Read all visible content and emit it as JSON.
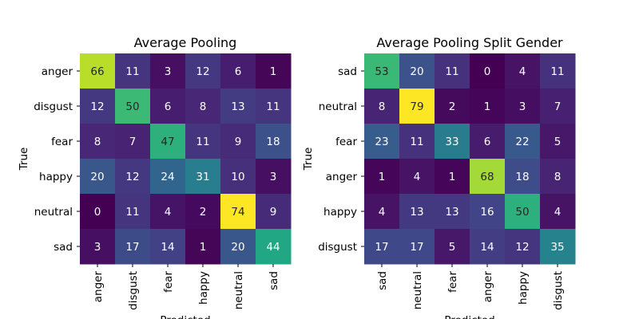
{
  "chart_data": [
    {
      "type": "heatmap",
      "title": "Average Pooling",
      "xlabel": "Predicted",
      "ylabel": "True",
      "row_labels": [
        "anger",
        "disgust",
        "fear",
        "happy",
        "neutral",
        "sad"
      ],
      "col_labels": [
        "anger",
        "disgust",
        "fear",
        "happy",
        "neutral",
        "sad"
      ],
      "values": [
        [
          66,
          11,
          3,
          12,
          6,
          1
        ],
        [
          12,
          50,
          6,
          8,
          13,
          11
        ],
        [
          8,
          7,
          47,
          11,
          9,
          18
        ],
        [
          20,
          12,
          24,
          31,
          10,
          3
        ],
        [
          0,
          11,
          4,
          2,
          74,
          9
        ],
        [
          3,
          17,
          14,
          1,
          20,
          44
        ]
      ],
      "colormap": "viridis",
      "colorbar": false
    },
    {
      "type": "heatmap",
      "title": "Average Pooling Split Gender",
      "xlabel": "Predicted",
      "ylabel": "True",
      "row_labels": [
        "sad",
        "neutral",
        "fear",
        "anger",
        "happy",
        "disgust"
      ],
      "col_labels": [
        "sad",
        "neutral",
        "fear",
        "anger",
        "happy",
        "disgust"
      ],
      "values": [
        [
          53,
          20,
          11,
          0,
          4,
          11
        ],
        [
          8,
          79,
          2,
          1,
          3,
          7
        ],
        [
          23,
          11,
          33,
          6,
          22,
          5
        ],
        [
          1,
          4,
          1,
          68,
          18,
          8
        ],
        [
          4,
          13,
          13,
          16,
          50,
          4
        ],
        [
          17,
          17,
          5,
          14,
          12,
          35
        ]
      ],
      "colormap": "viridis",
      "colorbar": false
    }
  ]
}
